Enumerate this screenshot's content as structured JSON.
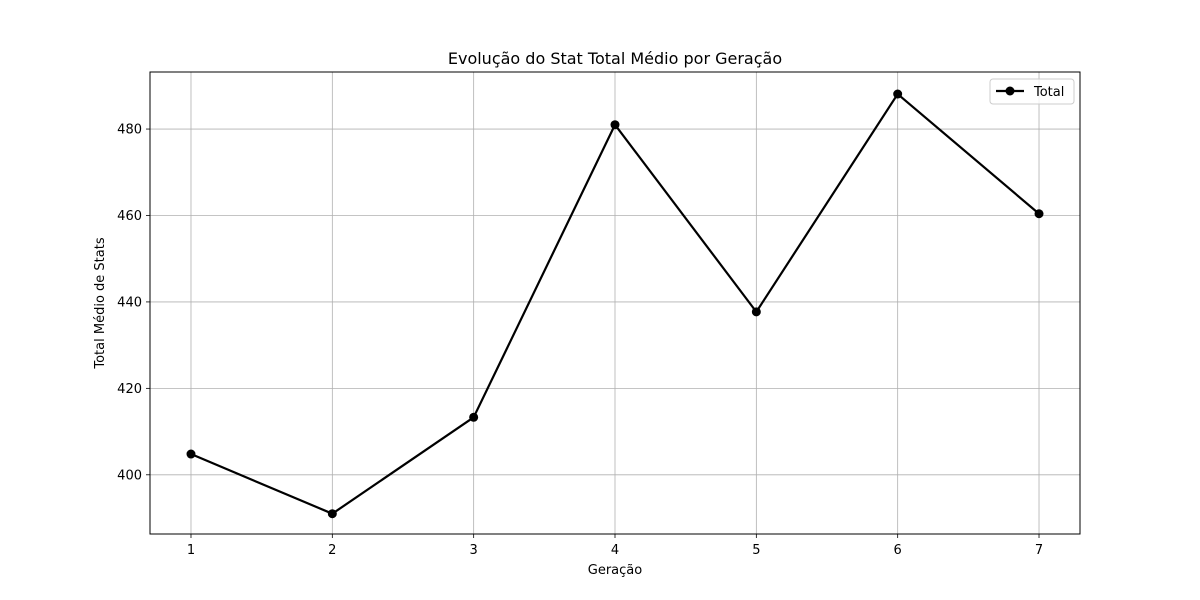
{
  "chart_data": {
    "type": "line",
    "title": "Evolução do Stat Total Médio por Geração",
    "xlabel": "Geração",
    "ylabel": "Total Médio de Stats",
    "x": [
      1,
      2,
      3,
      4,
      5,
      6,
      7
    ],
    "x_tick_labels": [
      "1",
      "2",
      "3",
      "4",
      "5",
      "6",
      "7"
    ],
    "y_ticks": [
      400,
      420,
      440,
      460,
      480
    ],
    "y_tick_labels": [
      "400",
      "420",
      "440",
      "460",
      "480"
    ],
    "xlim": [
      0.71,
      7.29
    ],
    "ylim": [
      386.3,
      493.2
    ],
    "grid": true,
    "legend_position": "top-right",
    "series": [
      {
        "name": "Total",
        "color": "#000000",
        "marker": "circle",
        "values": [
          404.8,
          391.0,
          413.3,
          481.0,
          437.7,
          488.1,
          460.4
        ]
      }
    ]
  }
}
